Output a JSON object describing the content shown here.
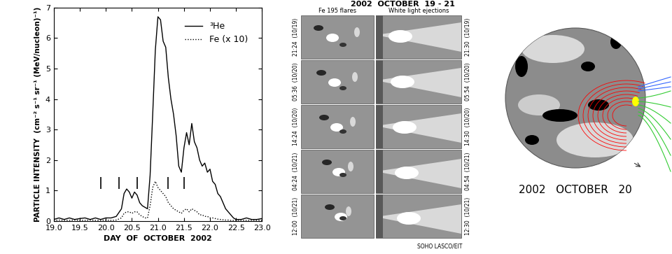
{
  "chart_data": {
    "type": "line",
    "x_label": "DAY  OF  OCTOBER  2002",
    "y_label": "PARTICLE INTENSITY  (cm⁻² s⁻¹ sr⁻¹ (MeV/nucleon)⁻¹)",
    "x": [
      19.0,
      19.1,
      19.2,
      19.3,
      19.4,
      19.5,
      19.6,
      19.7,
      19.8,
      19.9,
      20.0,
      20.1,
      20.2,
      20.3,
      20.35,
      20.4,
      20.45,
      20.5,
      20.55,
      20.6,
      20.65,
      20.7,
      20.75,
      20.8,
      20.85,
      20.9,
      20.95,
      21.0,
      21.05,
      21.1,
      21.15,
      21.2,
      21.25,
      21.3,
      21.35,
      21.4,
      21.45,
      21.5,
      21.55,
      21.6,
      21.65,
      21.7,
      21.75,
      21.8,
      21.85,
      21.9,
      21.95,
      22.0,
      22.05,
      22.1,
      22.15,
      22.2,
      22.25,
      22.3,
      22.35,
      22.4,
      22.45,
      22.5,
      22.6,
      22.7,
      22.8,
      22.9,
      23.0
    ],
    "series": [
      {
        "name": "³He",
        "color": "#000000",
        "line_style": "solid",
        "values": [
          0.05,
          0.1,
          0.05,
          0.1,
          0.05,
          0.08,
          0.1,
          0.05,
          0.1,
          0.05,
          0.1,
          0.1,
          0.15,
          0.4,
          0.9,
          1.05,
          0.95,
          0.75,
          0.95,
          0.85,
          0.6,
          0.5,
          0.45,
          0.4,
          1.5,
          3.5,
          5.6,
          6.7,
          6.6,
          5.9,
          5.7,
          4.7,
          4.0,
          3.5,
          2.8,
          1.8,
          1.6,
          2.4,
          2.9,
          2.5,
          3.2,
          2.6,
          2.4,
          2.0,
          1.8,
          1.9,
          1.6,
          1.7,
          1.3,
          1.2,
          0.9,
          0.8,
          0.6,
          0.4,
          0.3,
          0.2,
          0.1,
          0.05,
          0.05,
          0.1,
          0.05,
          0.05,
          0.08
        ]
      },
      {
        "name": "Fe (x 10)",
        "color": "#000000",
        "line_style": "dotted",
        "values": [
          0.02,
          0.03,
          0.02,
          0.02,
          0.03,
          0.02,
          0.02,
          0.03,
          0.02,
          0.02,
          0.03,
          0.02,
          0.03,
          0.1,
          0.25,
          0.3,
          0.3,
          0.25,
          0.3,
          0.3,
          0.2,
          0.15,
          0.1,
          0.1,
          0.5,
          1.1,
          1.3,
          1.1,
          1.0,
          0.9,
          0.8,
          0.6,
          0.5,
          0.4,
          0.35,
          0.3,
          0.25,
          0.35,
          0.4,
          0.3,
          0.4,
          0.35,
          0.3,
          0.2,
          0.2,
          0.15,
          0.15,
          0.1,
          0.1,
          0.08,
          0.06,
          0.05,
          0.04,
          0.03,
          0.03,
          0.02,
          0.02,
          0.02,
          0.02,
          0.02,
          0.02,
          0.02,
          0.02
        ]
      }
    ],
    "event_markers": {
      "x": [
        19.9,
        20.25,
        20.6,
        21.2,
        21.5
      ],
      "ymin": 1.05,
      "ymax": 1.45
    },
    "xlim": [
      19.0,
      23.0
    ],
    "xticks": [
      19.0,
      19.5,
      20.0,
      20.5,
      21.0,
      21.5,
      22.0,
      22.5,
      23.0
    ],
    "ylim": [
      0,
      7
    ],
    "yticks": [
      0,
      1,
      2,
      3,
      4,
      5,
      6,
      7
    ],
    "legend": "upper right",
    "grid": false
  },
  "image_panel": {
    "title": "2002  OCTOBER  19 - 21",
    "columns": [
      "Fe 195 flares",
      "White light ejections"
    ],
    "left_times": [
      "21:24  (10/19)",
      "05:36  (10/20)",
      "14:24  (10/20)",
      "04:24  (10/21)",
      "12:00  (10/21)"
    ],
    "right_times": [
      "21:30  (10/19)",
      "05:54  (10/20)",
      "14:30  (10/20)",
      "04:54  (10/21)",
      "12:30  (10/21)"
    ],
    "credit": "SOHO LASCO/EIT"
  },
  "map_panel": {
    "caption": "2002   OCTOBER   20"
  }
}
